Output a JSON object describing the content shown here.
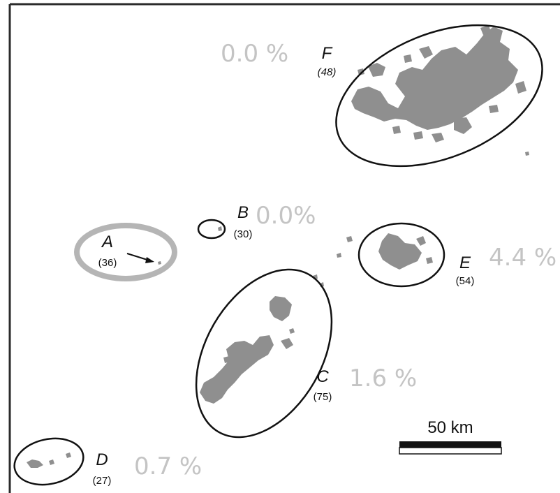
{
  "colors": {
    "frame": "#2b2b2b",
    "patch": "#8f8f8f",
    "ellipse": "#111111",
    "highlight_ring": "#b5b5b5",
    "percent_text": "#c4c4c4"
  },
  "regions": [
    {
      "id": "A",
      "letter": "A",
      "count": "(36)",
      "percent": ""
    },
    {
      "id": "B",
      "letter": "B",
      "count": "(30)",
      "percent": "0.0%"
    },
    {
      "id": "C",
      "letter": "C",
      "count": "(75)",
      "percent": "1.6 %"
    },
    {
      "id": "D",
      "letter": "D",
      "count": "(27)",
      "percent": "0.7 %"
    },
    {
      "id": "E",
      "letter": "E",
      "count": "(54)",
      "percent": "4.4 %"
    },
    {
      "id": "F",
      "letter": "F",
      "count": "(48)",
      "percent": "0.0 %"
    }
  ],
  "scale_bar": {
    "label": "50 km"
  }
}
